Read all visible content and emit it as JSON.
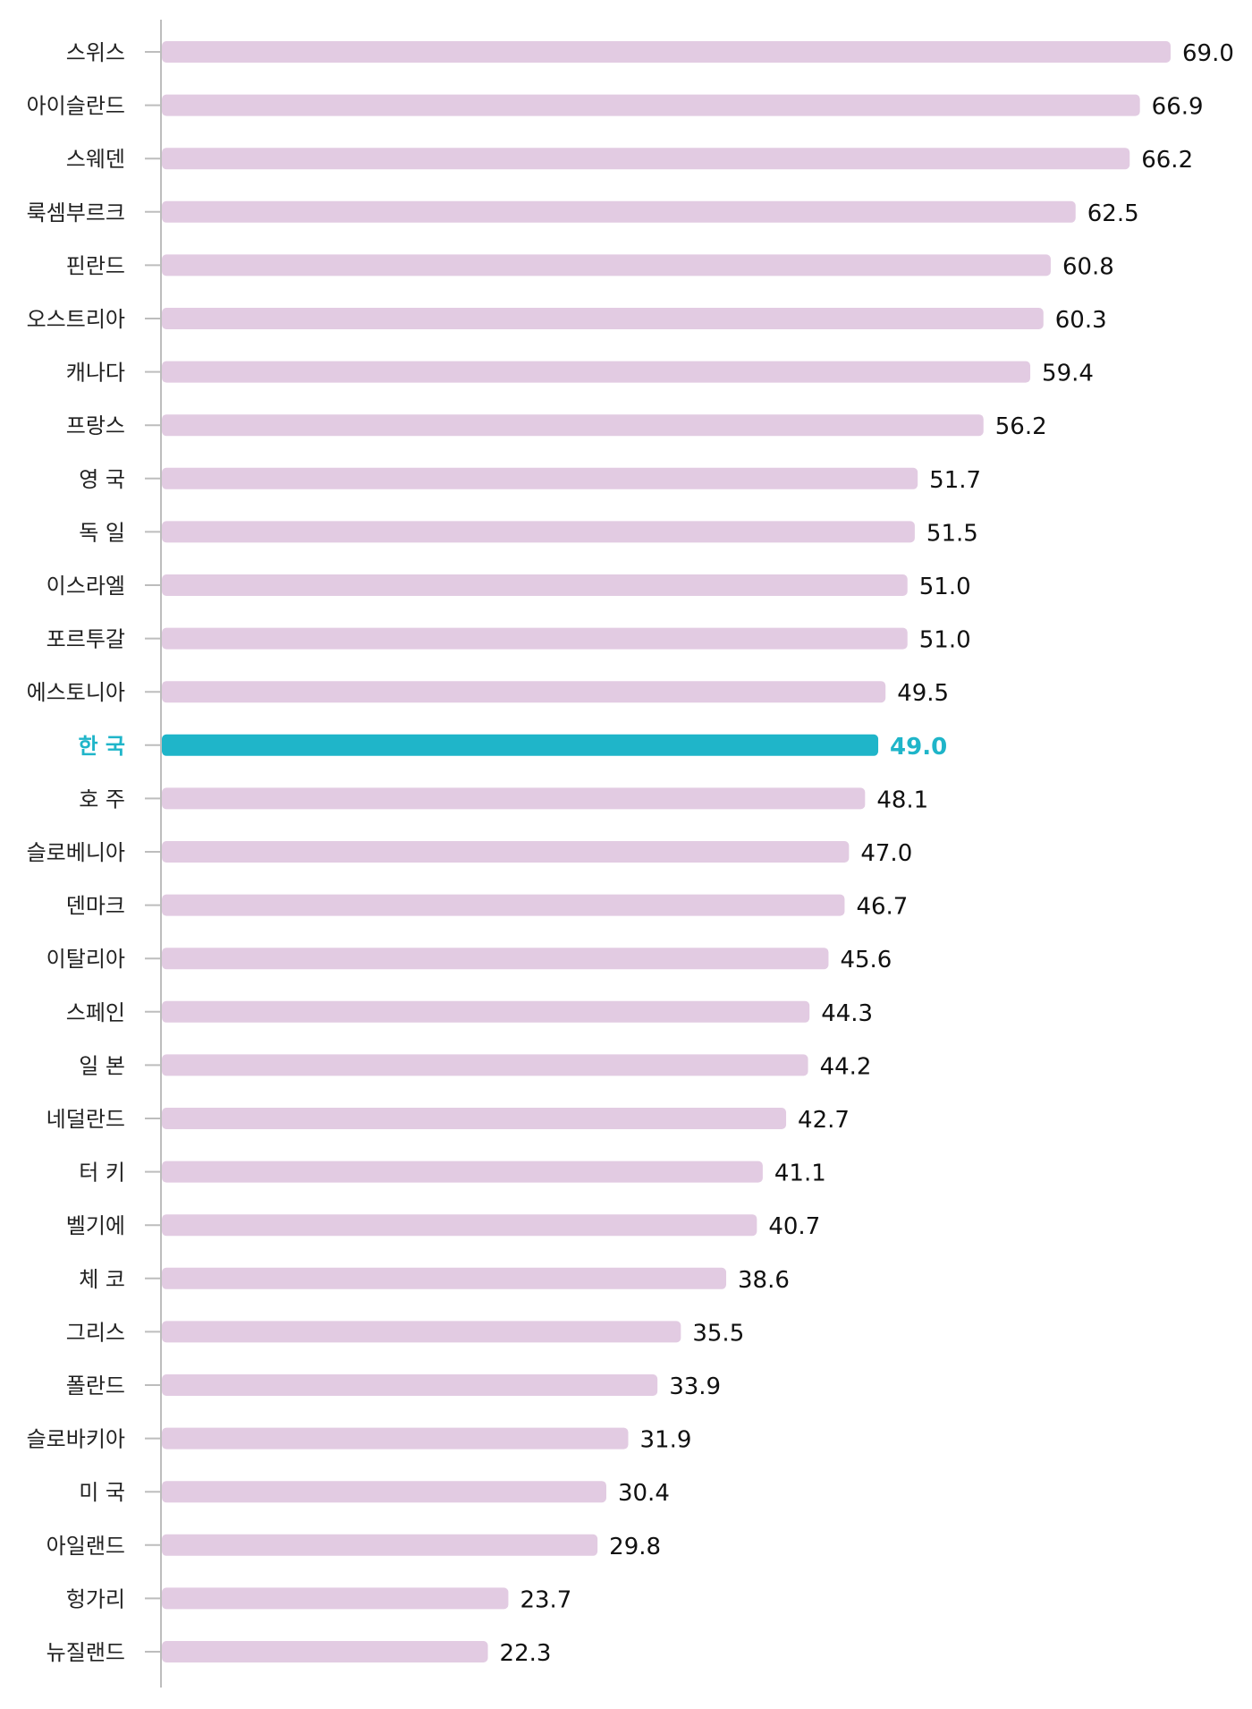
{
  "chart_data": {
    "type": "bar",
    "orientation": "horizontal",
    "title": "",
    "xlabel": "",
    "ylabel": "",
    "xlim": [
      0,
      69.0
    ],
    "grid": false,
    "legend": "none",
    "colors": {
      "bar": "#e2cbe2",
      "highlight": "#1fb5c9",
      "axis": "#bdbdbd"
    },
    "highlight_category": "한 국",
    "categories": [
      "스위스",
      "아이슬란드",
      "스웨덴",
      "룩셈부르크",
      "핀란드",
      "오스트리아",
      "캐나다",
      "프랑스",
      "영 국",
      "독 일",
      "이스라엘",
      "포르투갈",
      "에스토니아",
      "한 국",
      "호 주",
      "슬로베니아",
      "덴마크",
      "이탈리아",
      "스페인",
      "일 본",
      "네덜란드",
      "터 키",
      "벨기에",
      "체 코",
      "그리스",
      "폴란드",
      "슬로바키아",
      "미 국",
      "아일랜드",
      "헝가리",
      "뉴질랜드"
    ],
    "values": [
      69.0,
      66.9,
      66.2,
      62.5,
      60.8,
      60.3,
      59.4,
      56.2,
      51.7,
      51.5,
      51.0,
      51.0,
      49.5,
      49.0,
      48.1,
      47.0,
      46.7,
      45.6,
      44.3,
      44.2,
      42.7,
      41.1,
      40.7,
      38.6,
      35.5,
      33.9,
      31.9,
      30.4,
      29.8,
      23.7,
      22.3
    ],
    "value_labels": [
      "69.0",
      "66.9",
      "66.2",
      "62.5",
      "60.8",
      "60.3",
      "59.4",
      "56.2",
      "51.7",
      "51.5",
      "51.0",
      "51.0",
      "49.5",
      "49.0",
      "48.1",
      "47.0",
      "46.7",
      "45.6",
      "44.3",
      "44.2",
      "42.7",
      "41.1",
      "40.7",
      "38.6",
      "35.5",
      "33.9",
      "31.9",
      "30.4",
      "29.8",
      "23.7",
      "22.3"
    ]
  }
}
